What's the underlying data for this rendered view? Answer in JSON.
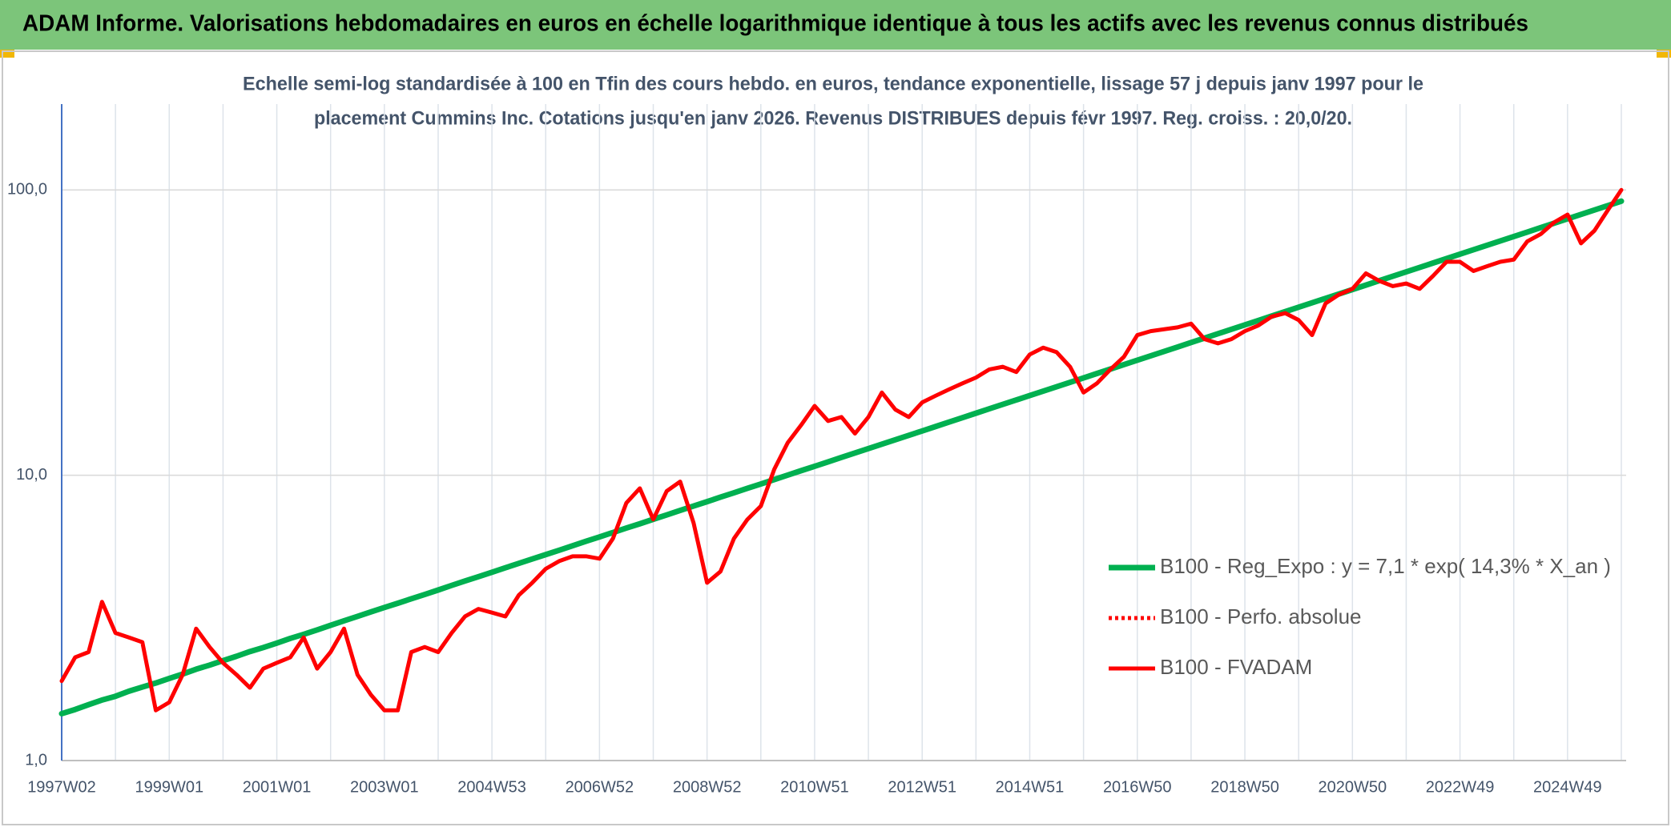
{
  "chart_data": {
    "type": "line",
    "title": "ADAM Informe. Valorisations hebdomadaires en euros en échelle logarithmique identique à tous les actifs avec les revenus connus distribués",
    "subtitle": [
      "Echelle semi-log standardisée à 100 en Tfin des cours hebdo. en euros, tendance exponentielle, lissage 57 j depuis janv 1997 pour le",
      "placement Cummins Inc. Cotations jusqu'en janv 2026. Revenus DISTRIBUES depuis févr 1997. Reg. croiss. : 20,0/20."
    ],
    "categories": [
      "1997W02",
      null,
      null,
      null,
      null,
      null,
      null,
      null,
      "1999W01",
      null,
      null,
      null,
      null,
      null,
      null,
      null,
      "2001W01",
      null,
      null,
      null,
      null,
      null,
      null,
      null,
      "2003W01",
      null,
      null,
      null,
      null,
      null,
      null,
      null,
      "2004W53",
      null,
      null,
      null,
      null,
      null,
      null,
      null,
      "2006W52",
      null,
      null,
      null,
      null,
      null,
      null,
      null,
      "2008W52",
      null,
      null,
      null,
      null,
      null,
      null,
      null,
      "2010W51",
      null,
      null,
      null,
      null,
      null,
      null,
      null,
      "2012W51",
      null,
      null,
      null,
      null,
      null,
      null,
      null,
      "2014W51",
      null,
      null,
      null,
      null,
      null,
      null,
      null,
      "2016W50",
      null,
      null,
      null,
      null,
      null,
      null,
      null,
      "2018W50",
      null,
      null,
      null,
      null,
      null,
      null,
      null,
      "2020W50",
      null,
      null,
      null,
      null,
      null,
      null,
      null,
      "2022W49",
      null,
      null,
      null,
      null,
      null,
      null,
      null,
      "2024W49",
      null,
      null,
      null,
      null
    ],
    "series": [
      {
        "name": "B100 - Reg_Expo : y = 7,1 * exp( 14,3% *  X_an )",
        "color": "#00b050",
        "dash": "solid",
        "values": [
          1.46,
          1.51,
          1.57,
          1.63,
          1.68,
          1.75,
          1.81,
          1.87,
          1.94,
          2.01,
          2.09,
          2.16,
          2.24,
          2.32,
          2.41,
          2.49,
          2.58,
          2.68,
          2.77,
          2.87,
          2.98,
          3.09,
          3.2,
          3.32,
          3.44,
          3.56,
          3.69,
          3.82,
          3.96,
          4.11,
          4.26,
          4.41,
          4.57,
          4.74,
          4.91,
          5.09,
          5.27,
          5.46,
          5.66,
          5.87,
          6.08,
          6.3,
          6.53,
          6.76,
          7.01,
          7.26,
          7.53,
          7.8,
          8.08,
          8.38,
          8.68,
          9.0,
          9.32,
          9.66,
          10.01,
          10.38,
          10.75,
          11.14,
          11.55,
          11.97,
          12.4,
          12.85,
          13.32,
          13.8,
          14.3,
          14.82,
          15.36,
          15.92,
          16.5,
          17.1,
          17.72,
          18.36,
          19.03,
          19.72,
          20.43,
          21.17,
          21.94,
          22.74,
          23.56,
          24.42,
          25.31,
          26.23,
          27.18,
          28.16,
          29.19,
          30.25,
          31.35,
          32.48,
          33.66,
          34.88,
          36.15,
          37.46,
          38.82,
          40.23,
          41.69,
          43.21,
          44.77,
          46.4,
          48.08,
          49.83,
          51.64,
          53.51,
          55.46,
          57.47,
          59.56,
          61.72,
          63.96,
          66.28,
          68.69,
          71.18,
          73.77,
          76.44,
          79.22,
          82.09,
          85.07,
          88.16,
          91.36
        ]
      },
      {
        "name": "B100 - Perfo. absolue",
        "color": "#ff0000",
        "dash": "dotted",
        "values": [
          null,
          null,
          null,
          null,
          null,
          null,
          null,
          null,
          null,
          null,
          null,
          null,
          null,
          null,
          null,
          null,
          null,
          null,
          null,
          null,
          null,
          null,
          null,
          null,
          null,
          null,
          null,
          null,
          null,
          null,
          null,
          null,
          null,
          null,
          null,
          null,
          null,
          null,
          null,
          null,
          null,
          null,
          null,
          null,
          null,
          null,
          null,
          null,
          null,
          null,
          null,
          null,
          null,
          null,
          null,
          null,
          null,
          null,
          null,
          null,
          null,
          null,
          null,
          null,
          null,
          null,
          null,
          null,
          null,
          null,
          null,
          null,
          null,
          null,
          null,
          null,
          null,
          null,
          null,
          null,
          null,
          null,
          null,
          null,
          null,
          null,
          null,
          null,
          null,
          null,
          null,
          null,
          null,
          null,
          null,
          null,
          null,
          null,
          null,
          null,
          null,
          null,
          null,
          null,
          null,
          null,
          null,
          null,
          null,
          null,
          null,
          null,
          null,
          null,
          null,
          null,
          null
        ]
      },
      {
        "name": "B100 - FVADAM",
        "color": "#ff0000",
        "dash": "solid",
        "values": [
          1.9,
          2.3,
          2.4,
          3.6,
          2.8,
          2.7,
          2.6,
          1.5,
          1.6,
          2.0,
          2.9,
          2.5,
          2.2,
          2.0,
          1.8,
          2.1,
          2.2,
          2.3,
          2.7,
          2.1,
          2.4,
          2.9,
          2.0,
          1.7,
          1.5,
          1.5,
          2.4,
          2.5,
          2.4,
          2.8,
          3.2,
          3.4,
          3.3,
          3.2,
          3.8,
          4.2,
          4.7,
          5.0,
          5.2,
          5.2,
          5.1,
          6.0,
          8.0,
          9.0,
          7.0,
          8.8,
          9.5,
          6.8,
          4.2,
          4.6,
          6.0,
          7.0,
          7.8,
          10.5,
          13.0,
          15.0,
          17.5,
          15.5,
          16.0,
          14.0,
          16.0,
          19.5,
          17.0,
          16.0,
          18.0,
          19.0,
          20.0,
          21.0,
          22.0,
          23.5,
          24.0,
          23.0,
          26.5,
          28.0,
          27.0,
          24.0,
          19.5,
          21.0,
          23.5,
          26.0,
          31.0,
          32.0,
          32.5,
          33.0,
          34.0,
          30.0,
          29.0,
          30.0,
          32.0,
          33.5,
          36.0,
          37.0,
          35.0,
          31.0,
          40.0,
          43.0,
          45.0,
          51.0,
          48.0,
          46.0,
          47.0,
          45.0,
          50.0,
          56.0,
          56.0,
          52.0,
          54.0,
          56.0,
          57.0,
          66.0,
          70.0,
          77.0,
          82.0,
          65.0,
          72.0,
          85.0,
          100.0
        ]
      }
    ],
    "ylim": [
      1,
      200
    ],
    "yticks": [
      {
        "value": 1,
        "label": "1,0"
      },
      {
        "value": 10,
        "label": "10,0"
      },
      {
        "value": 100,
        "label": "100,0"
      }
    ],
    "log_scale": true,
    "grid": true,
    "legend": "lower right"
  }
}
